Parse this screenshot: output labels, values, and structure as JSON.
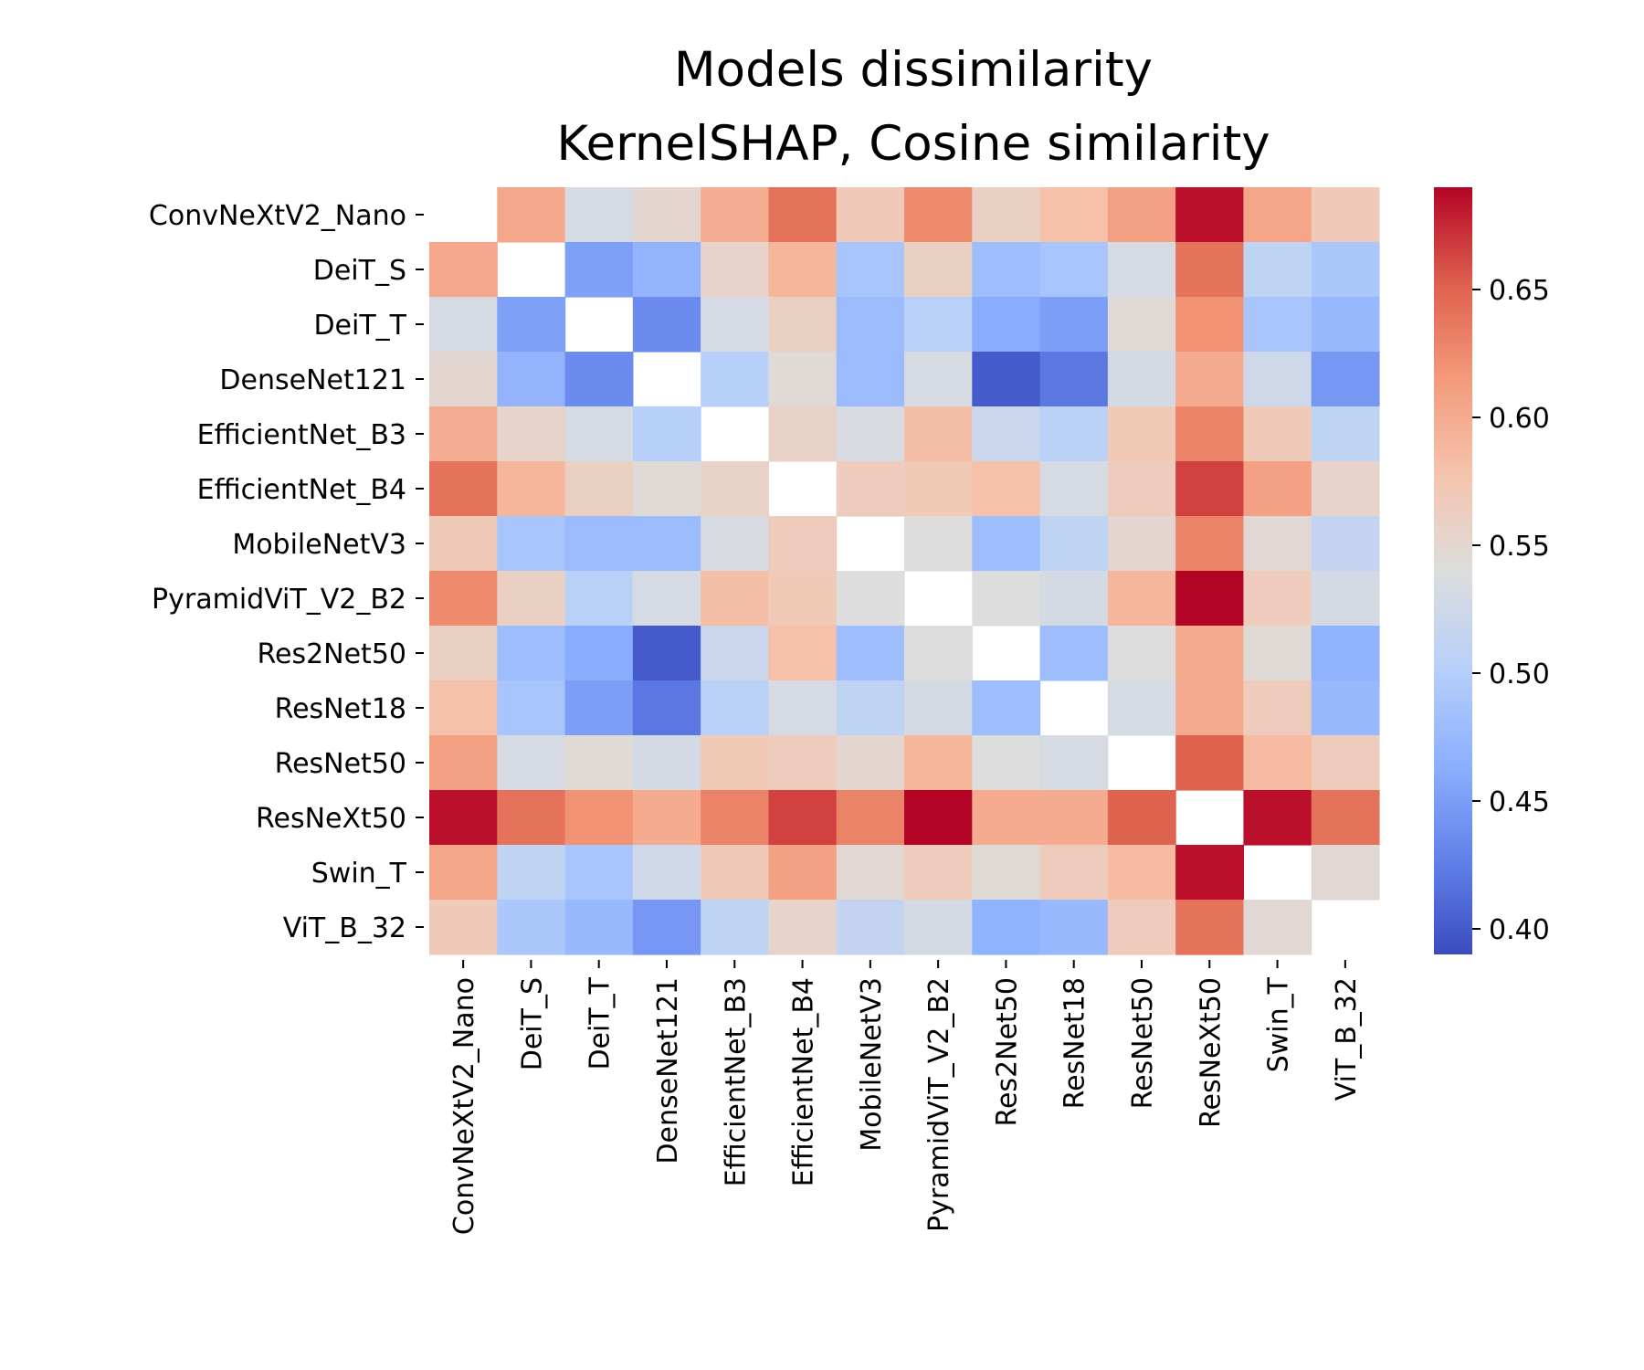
{
  "chart_data": {
    "type": "heatmap",
    "title_lines": [
      "Models dissimilarity",
      "KernelSHAP, Cosine similarity"
    ],
    "rows": [
      "ConvNeXtV2_Nano",
      "DeiT_S",
      "DeiT_T",
      "DenseNet121",
      "EfficientNet_B3",
      "EfficientNet_B4",
      "MobileNetV3",
      "PyramidViT_V2_B2",
      "Res2Net50",
      "ResNet18",
      "ResNet50",
      "ResNeXt50",
      "Swin_T",
      "ViT_B_32"
    ],
    "columns": [
      "ConvNeXtV2_Nano",
      "DeiT_S",
      "DeiT_T",
      "DenseNet121",
      "EfficientNet_B3",
      "EfficientNet_B4",
      "MobileNetV3",
      "PyramidViT_V2_B2",
      "Res2Net50",
      "ResNet18",
      "ResNet50",
      "ResNeXt50",
      "Swin_T",
      "ViT_B_32"
    ],
    "values": [
      [
        null,
        0.603,
        0.532,
        0.55,
        0.598,
        0.64,
        0.568,
        0.625,
        0.56,
        0.58,
        0.61,
        0.685,
        0.605,
        0.568
      ],
      [
        0.603,
        null,
        0.452,
        0.47,
        0.555,
        0.59,
        0.488,
        0.56,
        0.48,
        0.488,
        0.532,
        0.64,
        0.51,
        0.492
      ],
      [
        0.532,
        0.452,
        null,
        0.435,
        0.532,
        0.56,
        0.478,
        0.505,
        0.462,
        0.45,
        0.545,
        0.62,
        0.49,
        0.475
      ],
      [
        0.55,
        0.47,
        0.435,
        null,
        0.502,
        0.545,
        0.478,
        0.532,
        0.4,
        0.42,
        0.53,
        0.6,
        0.525,
        0.445
      ],
      [
        0.598,
        0.555,
        0.532,
        0.502,
        null,
        0.557,
        0.535,
        0.582,
        0.52,
        0.505,
        0.57,
        0.63,
        0.568,
        0.51
      ],
      [
        0.64,
        0.59,
        0.56,
        0.545,
        0.557,
        null,
        0.565,
        0.57,
        0.58,
        0.532,
        0.565,
        0.665,
        0.61,
        0.555
      ],
      [
        0.568,
        0.488,
        0.478,
        0.478,
        0.535,
        0.565,
        null,
        0.54,
        0.48,
        0.51,
        0.55,
        0.63,
        0.548,
        0.515
      ],
      [
        0.625,
        0.56,
        0.505,
        0.532,
        0.582,
        0.57,
        0.54,
        null,
        0.54,
        0.53,
        0.59,
        0.69,
        0.567,
        0.53
      ],
      [
        0.56,
        0.48,
        0.462,
        0.4,
        0.52,
        0.58,
        0.48,
        0.54,
        null,
        0.48,
        0.54,
        0.6,
        0.545,
        0.468
      ],
      [
        0.58,
        0.488,
        0.45,
        0.42,
        0.505,
        0.532,
        0.51,
        0.53,
        0.48,
        null,
        0.532,
        0.6,
        0.567,
        0.475
      ],
      [
        0.61,
        0.532,
        0.545,
        0.53,
        0.57,
        0.565,
        0.55,
        0.59,
        0.54,
        0.532,
        null,
        0.65,
        0.585,
        0.567
      ],
      [
        0.685,
        0.64,
        0.62,
        0.6,
        0.63,
        0.665,
        0.63,
        0.69,
        0.6,
        0.6,
        0.65,
        null,
        0.685,
        0.64
      ],
      [
        0.605,
        0.51,
        0.49,
        0.525,
        0.568,
        0.61,
        0.548,
        0.567,
        0.545,
        0.567,
        0.585,
        0.685,
        null,
        0.548
      ],
      [
        0.568,
        0.492,
        0.475,
        0.445,
        0.51,
        0.555,
        0.515,
        0.53,
        0.468,
        0.475,
        0.567,
        0.64,
        0.548,
        null
      ]
    ],
    "colorbar": {
      "colormap": "coolwarm",
      "vmin": 0.39,
      "vmax": 0.69,
      "ticks": [
        0.4,
        0.45,
        0.5,
        0.55,
        0.6,
        0.65
      ],
      "tick_labels": [
        "0.40",
        "0.45",
        "0.50",
        "0.55",
        "0.60",
        "0.65"
      ]
    }
  }
}
